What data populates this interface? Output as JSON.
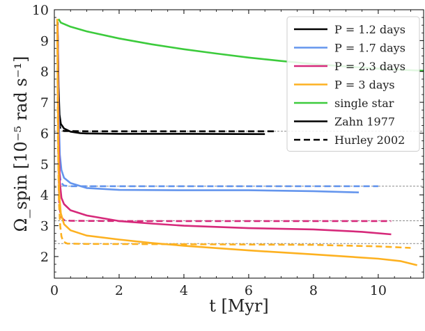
{
  "chart_data": {
    "type": "line",
    "xlabel": "t [Myr]",
    "ylabel": "Ω_spin [10⁻⁵ rad s⁻¹]",
    "xlim": [
      0,
      11.4
    ],
    "ylim": [
      1.3,
      10
    ],
    "xticks": [
      "0",
      "2",
      "4",
      "6",
      "8",
      "10"
    ],
    "xtick_values": [
      0,
      2,
      4,
      6,
      8,
      10
    ],
    "yticks": [
      "2",
      "3",
      "4",
      "5",
      "6",
      "7",
      "8",
      "9",
      "10"
    ],
    "ytick_values": [
      2,
      3,
      4,
      5,
      6,
      7,
      8,
      9,
      10
    ],
    "legend": [
      {
        "label": "P = 1.2 days",
        "color": "#000000",
        "style": "solid"
      },
      {
        "label": "P = 1.7 days",
        "color": "#6495ED",
        "style": "solid"
      },
      {
        "label": "P = 2.3 days",
        "color": "#D6297A",
        "style": "solid"
      },
      {
        "label": "P = 3 days",
        "color": "#FDB120",
        "style": "solid"
      },
      {
        "label": "single star",
        "color": "#3CCB3C",
        "style": "solid"
      },
      {
        "label": "Zahn 1977",
        "color": "#000000",
        "style": "solid"
      },
      {
        "label": "Hurley 2002",
        "color": "#000000",
        "style": "dashed"
      }
    ],
    "reference_lines": [
      {
        "name": "sync-1.2",
        "y": 6.06
      },
      {
        "name": "sync-1.7",
        "y": 4.28
      },
      {
        "name": "sync-2.3",
        "y": 3.16
      },
      {
        "name": "sync-3",
        "y": 2.42
      }
    ],
    "series": [
      {
        "name": "single star",
        "color": "#3CCB3C",
        "dash": false,
        "points": [
          [
            0.13,
            9.7
          ],
          [
            0.2,
            9.58
          ],
          [
            0.5,
            9.45
          ],
          [
            1,
            9.3
          ],
          [
            2,
            9.07
          ],
          [
            3,
            8.88
          ],
          [
            4,
            8.72
          ],
          [
            5,
            8.58
          ],
          [
            6,
            8.45
          ],
          [
            7,
            8.34
          ],
          [
            8,
            8.24
          ],
          [
            9,
            8.16
          ],
          [
            10,
            8.09
          ],
          [
            11.4,
            8.02
          ]
        ]
      },
      {
        "name": "P = 1.2 days Zahn",
        "color": "#000000",
        "dash": false,
        "points": [
          [
            0.1,
            9.6
          ],
          [
            0.13,
            7.5
          ],
          [
            0.16,
            6.6
          ],
          [
            0.2,
            6.3
          ],
          [
            0.3,
            6.15
          ],
          [
            0.5,
            6.05
          ],
          [
            0.8,
            6.0
          ],
          [
            1,
            5.99
          ],
          [
            2,
            5.98
          ],
          [
            4,
            5.98
          ],
          [
            6.5,
            5.97
          ]
        ]
      },
      {
        "name": "P = 1.2 days Hurley",
        "color": "#000000",
        "dash": true,
        "points": [
          [
            0.1,
            9.5
          ],
          [
            0.12,
            7.2
          ],
          [
            0.15,
            6.3
          ],
          [
            0.2,
            6.1
          ],
          [
            0.3,
            6.07
          ],
          [
            1,
            6.06
          ],
          [
            4,
            6.06
          ],
          [
            6.8,
            6.06
          ]
        ]
      },
      {
        "name": "P = 1.7 days Zahn",
        "color": "#6495ED",
        "dash": false,
        "points": [
          [
            0.1,
            9.5
          ],
          [
            0.13,
            6.8
          ],
          [
            0.17,
            5.3
          ],
          [
            0.22,
            4.8
          ],
          [
            0.3,
            4.55
          ],
          [
            0.5,
            4.38
          ],
          [
            1,
            4.22
          ],
          [
            2,
            4.16
          ],
          [
            4,
            4.15
          ],
          [
            6,
            4.15
          ],
          [
            8,
            4.12
          ],
          [
            9.4,
            4.08
          ]
        ]
      },
      {
        "name": "P = 1.7 days Hurley",
        "color": "#6495ED",
        "dash": true,
        "points": [
          [
            0.1,
            9.4
          ],
          [
            0.12,
            6.5
          ],
          [
            0.15,
            4.8
          ],
          [
            0.2,
            4.4
          ],
          [
            0.3,
            4.3
          ],
          [
            0.5,
            4.28
          ],
          [
            2,
            4.28
          ],
          [
            6,
            4.28
          ],
          [
            10,
            4.28
          ]
        ]
      },
      {
        "name": "P = 2.3 days Zahn",
        "color": "#D6297A",
        "dash": false,
        "points": [
          [
            0.1,
            9.5
          ],
          [
            0.13,
            6.0
          ],
          [
            0.17,
            4.4
          ],
          [
            0.22,
            3.9
          ],
          [
            0.3,
            3.7
          ],
          [
            0.5,
            3.5
          ],
          [
            1,
            3.33
          ],
          [
            2,
            3.15
          ],
          [
            3,
            3.07
          ],
          [
            4,
            3.0
          ],
          [
            6,
            2.92
          ],
          [
            8,
            2.88
          ],
          [
            9.5,
            2.8
          ],
          [
            10.4,
            2.72
          ]
        ]
      },
      {
        "name": "P = 2.3 days Hurley",
        "color": "#D6297A",
        "dash": true,
        "points": [
          [
            0.1,
            9.3
          ],
          [
            0.12,
            5.5
          ],
          [
            0.15,
            3.7
          ],
          [
            0.2,
            3.3
          ],
          [
            0.3,
            3.18
          ],
          [
            0.5,
            3.16
          ],
          [
            2,
            3.15
          ],
          [
            6,
            3.15
          ],
          [
            10.4,
            3.15
          ]
        ]
      },
      {
        "name": "P = 3 days Zahn",
        "color": "#FDB120",
        "dash": false,
        "points": [
          [
            0.09,
            9.7
          ],
          [
            0.12,
            5.8
          ],
          [
            0.15,
            4.0
          ],
          [
            0.2,
            3.4
          ],
          [
            0.3,
            3.05
          ],
          [
            0.5,
            2.85
          ],
          [
            1,
            2.68
          ],
          [
            2,
            2.55
          ],
          [
            3,
            2.44
          ],
          [
            4,
            2.35
          ],
          [
            6,
            2.2
          ],
          [
            8,
            2.07
          ],
          [
            10,
            1.93
          ],
          [
            10.7,
            1.85
          ],
          [
            11.2,
            1.72
          ]
        ]
      },
      {
        "name": "P = 3 days Hurley",
        "color": "#FDB120",
        "dash": true,
        "points": [
          [
            0.09,
            9.7
          ],
          [
            0.11,
            6.0
          ],
          [
            0.14,
            3.8
          ],
          [
            0.18,
            3.0
          ],
          [
            0.22,
            2.65
          ],
          [
            0.28,
            2.48
          ],
          [
            0.4,
            2.42
          ],
          [
            1,
            2.41
          ],
          [
            4,
            2.4
          ],
          [
            8,
            2.38
          ],
          [
            10,
            2.33
          ],
          [
            11,
            2.28
          ]
        ]
      }
    ]
  }
}
